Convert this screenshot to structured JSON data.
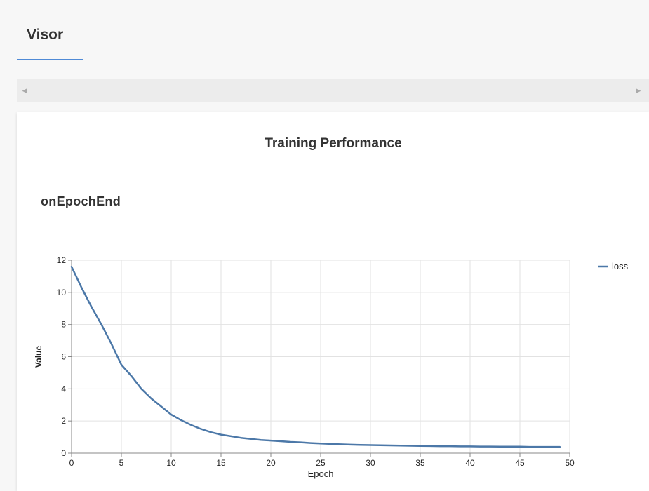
{
  "visor": {
    "title": "Visor"
  },
  "tabs": {
    "scroll_left_icon": "◀",
    "scroll_right_icon": "▶"
  },
  "surface": {
    "title": "Training Performance",
    "subsection": "onEpochEnd"
  },
  "chart_data": {
    "type": "line",
    "title": "",
    "xlabel": "Epoch",
    "ylabel": "Value",
    "xlim": [
      0,
      50
    ],
    "ylim": [
      0,
      12
    ],
    "x_ticks": [
      0,
      5,
      10,
      15,
      20,
      25,
      30,
      35,
      40,
      45,
      50
    ],
    "y_ticks": [
      0,
      2,
      4,
      6,
      8,
      10,
      12
    ],
    "grid": true,
    "legend_position": "top-right",
    "series": [
      {
        "name": "loss",
        "color": "#4c78a8",
        "x": [
          0,
          1,
          2,
          3,
          4,
          5,
          6,
          7,
          8,
          9,
          10,
          11,
          12,
          13,
          14,
          15,
          16,
          17,
          18,
          19,
          20,
          21,
          22,
          23,
          24,
          25,
          26,
          27,
          28,
          29,
          30,
          31,
          32,
          33,
          34,
          35,
          36,
          37,
          38,
          39,
          40,
          41,
          42,
          43,
          44,
          45,
          46,
          47,
          48,
          49
        ],
        "values": [
          11.6,
          10.3,
          9.1,
          8.0,
          6.8,
          5.5,
          4.8,
          4.0,
          3.4,
          2.9,
          2.4,
          2.05,
          1.75,
          1.5,
          1.3,
          1.15,
          1.05,
          0.95,
          0.88,
          0.82,
          0.78,
          0.74,
          0.7,
          0.67,
          0.63,
          0.6,
          0.57,
          0.55,
          0.53,
          0.51,
          0.5,
          0.49,
          0.48,
          0.47,
          0.46,
          0.45,
          0.44,
          0.43,
          0.43,
          0.42,
          0.42,
          0.41,
          0.41,
          0.4,
          0.4,
          0.4,
          0.39,
          0.39,
          0.39,
          0.39
        ]
      }
    ]
  }
}
